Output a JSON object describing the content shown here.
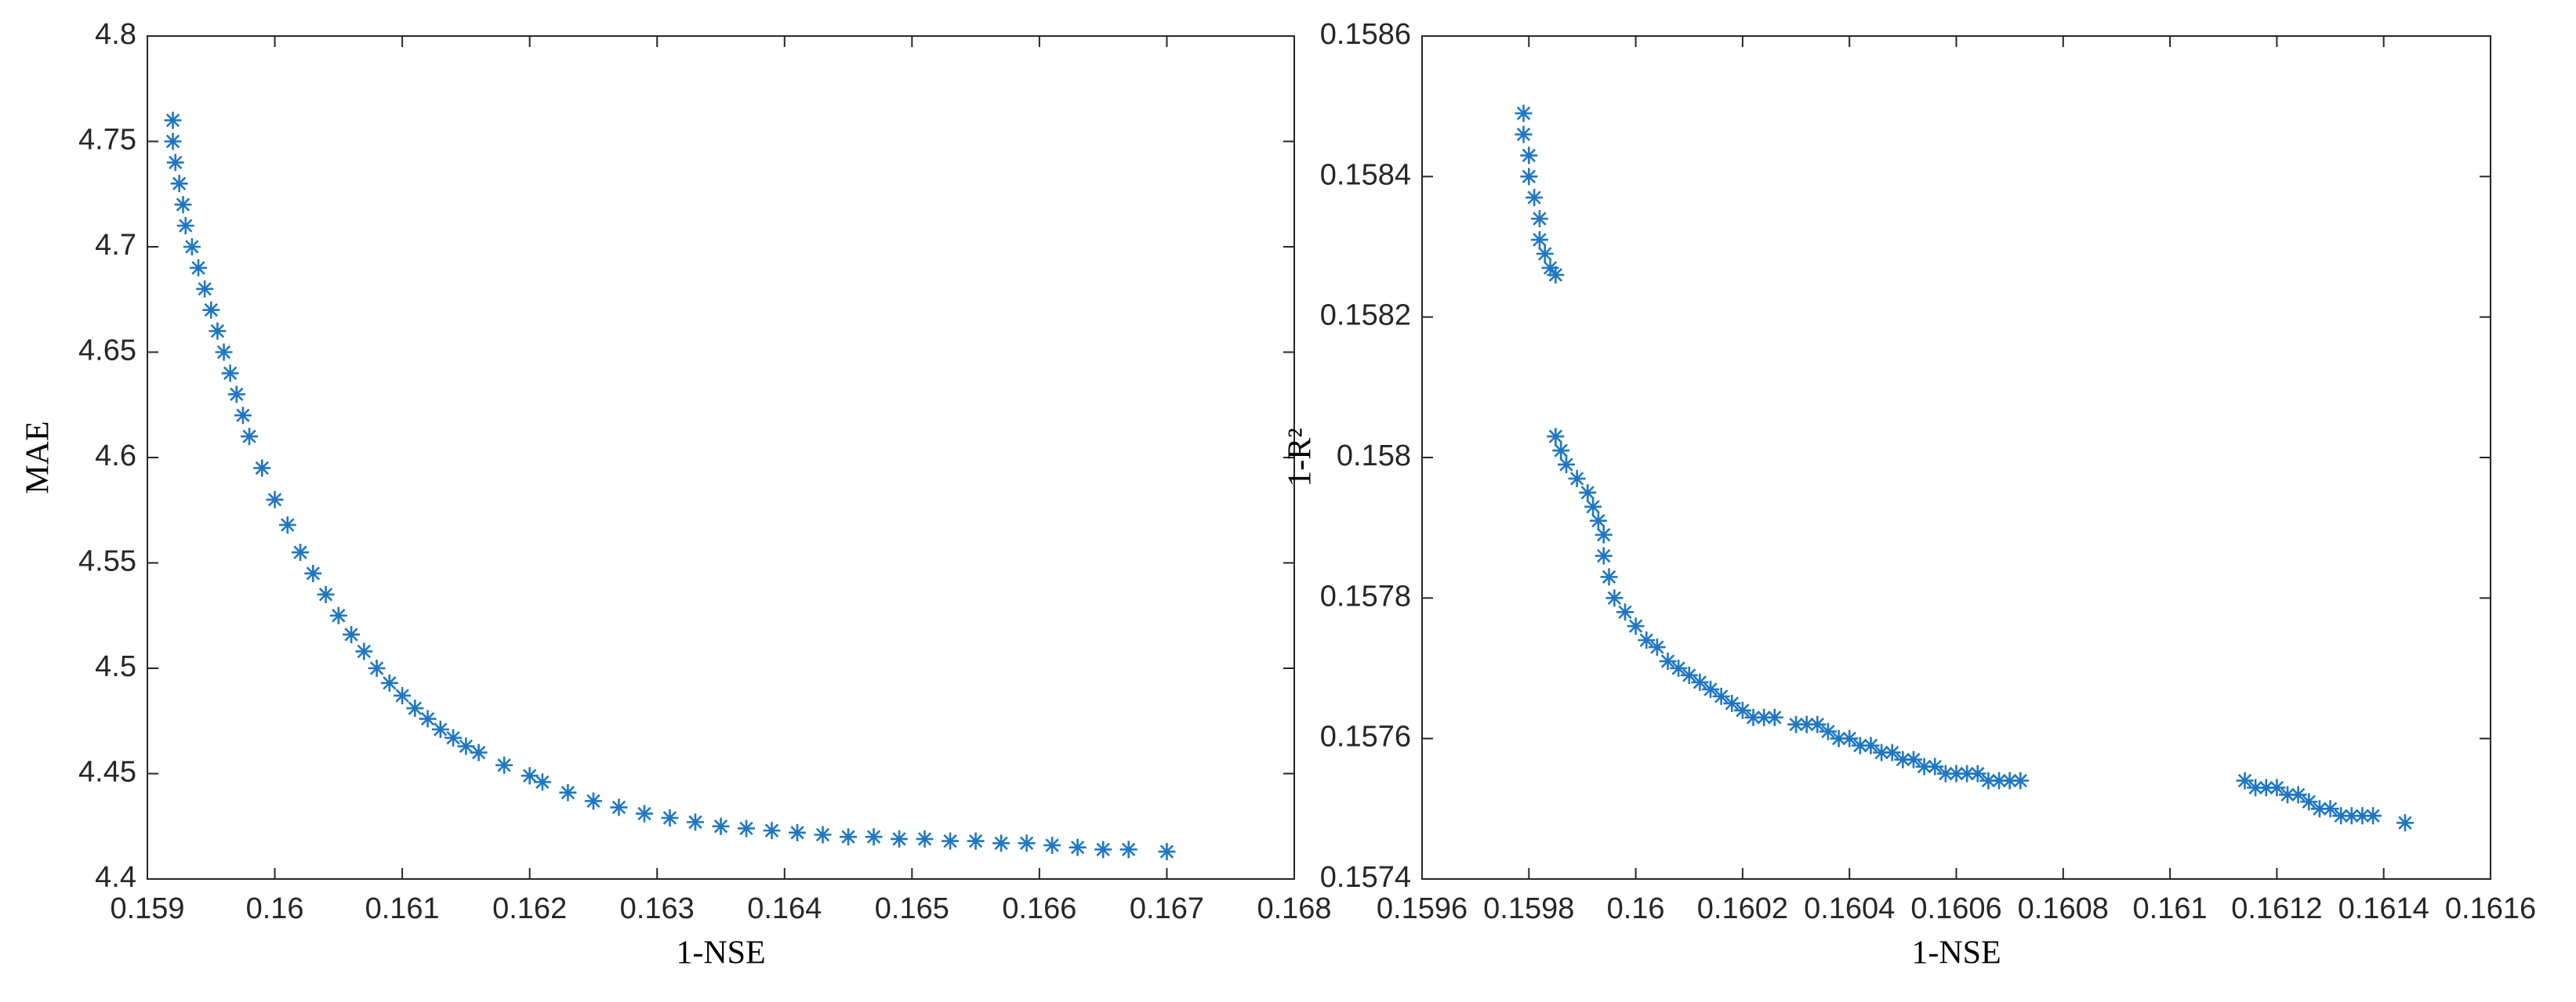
{
  "chart_data": [
    {
      "type": "scatter",
      "xlabel": "1-NSE",
      "ylabel": "MAE",
      "color": "#1f77c4",
      "xlim": [
        0.159,
        0.168
      ],
      "xticks": [
        0.159,
        0.16,
        0.161,
        0.162,
        0.163,
        0.164,
        0.165,
        0.166,
        0.167,
        0.168
      ],
      "ylim": [
        4.4,
        4.8
      ],
      "yticks": [
        4.4,
        4.45,
        4.5,
        4.55,
        4.6,
        4.65,
        4.7,
        4.75,
        4.8
      ],
      "x": [
        0.1592,
        0.1592,
        0.15922,
        0.15925,
        0.15928,
        0.1593,
        0.15935,
        0.1594,
        0.15945,
        0.1595,
        0.15955,
        0.1596,
        0.15965,
        0.1597,
        0.15975,
        0.1598,
        0.1599,
        0.16,
        0.1601,
        0.1602,
        0.1603,
        0.1604,
        0.1605,
        0.1606,
        0.1607,
        0.1608,
        0.1609,
        0.161,
        0.1611,
        0.1612,
        0.1613,
        0.1614,
        0.1615,
        0.1616,
        0.1618,
        0.162,
        0.1621,
        0.1623,
        0.1625,
        0.1627,
        0.1629,
        0.1631,
        0.1633,
        0.1635,
        0.1637,
        0.1639,
        0.1641,
        0.1643,
        0.1645,
        0.1647,
        0.1649,
        0.1651,
        0.1653,
        0.1655,
        0.1657,
        0.1659,
        0.1661,
        0.1663,
        0.1665,
        0.1667,
        0.167
      ],
      "y": [
        4.76,
        4.75,
        4.74,
        4.73,
        4.72,
        4.71,
        4.7,
        4.69,
        4.68,
        4.67,
        4.66,
        4.65,
        4.64,
        4.63,
        4.62,
        4.61,
        4.595,
        4.58,
        4.568,
        4.555,
        4.545,
        4.535,
        4.525,
        4.516,
        4.508,
        4.5,
        4.493,
        4.487,
        4.481,
        4.476,
        4.471,
        4.467,
        4.463,
        4.46,
        4.454,
        4.449,
        4.446,
        4.441,
        4.437,
        4.434,
        4.431,
        4.429,
        4.427,
        4.425,
        4.424,
        4.423,
        4.422,
        4.421,
        4.42,
        4.42,
        4.419,
        4.419,
        4.418,
        4.418,
        4.417,
        4.417,
        4.416,
        4.415,
        4.414,
        4.414,
        4.413
      ]
    },
    {
      "type": "scatter",
      "xlabel": "1-NSE",
      "ylabel": "1-R²",
      "color": "#1f77c4",
      "xlim": [
        0.1596,
        0.1616
      ],
      "xticks": [
        0.1596,
        0.1598,
        0.16,
        0.1602,
        0.1604,
        0.1606,
        0.1608,
        0.161,
        0.1612,
        0.1614,
        0.1616
      ],
      "ylim": [
        0.1574,
        0.1586
      ],
      "yticks": [
        0.1574,
        0.1576,
        0.1578,
        0.158,
        0.1582,
        0.1584,
        0.1586
      ],
      "x": [
        0.15979,
        0.15979,
        0.1598,
        0.1598,
        0.15981,
        0.15982,
        0.15982,
        0.15983,
        0.15984,
        0.15985,
        0.15985,
        0.15986,
        0.15987,
        0.15989,
        0.15991,
        0.15992,
        0.15993,
        0.15994,
        0.15994,
        0.15995,
        0.15996,
        0.15998,
        0.16,
        0.16002,
        0.16004,
        0.16006,
        0.16008,
        0.1601,
        0.16012,
        0.16014,
        0.16016,
        0.16018,
        0.1602,
        0.16022,
        0.16024,
        0.16026,
        0.1603,
        0.16032,
        0.16034,
        0.16036,
        0.16038,
        0.1604,
        0.16042,
        0.16044,
        0.16046,
        0.16048,
        0.1605,
        0.16052,
        0.16054,
        0.16056,
        0.16058,
        0.1606,
        0.16062,
        0.16064,
        0.16066,
        0.16068,
        0.1607,
        0.16072,
        0.16114,
        0.16116,
        0.16118,
        0.1612,
        0.16122,
        0.16124,
        0.16126,
        0.16128,
        0.1613,
        0.16132,
        0.16134,
        0.16136,
        0.16138,
        0.16144
      ],
      "y": [
        0.15849,
        0.15846,
        0.15843,
        0.1584,
        0.15837,
        0.15834,
        0.15831,
        0.15829,
        0.15827,
        0.15826,
        0.15803,
        0.15801,
        0.15799,
        0.15797,
        0.15795,
        0.15793,
        0.15791,
        0.15789,
        0.15786,
        0.15783,
        0.1578,
        0.15778,
        0.15776,
        0.15774,
        0.15773,
        0.15771,
        0.1577,
        0.15769,
        0.15768,
        0.15767,
        0.15766,
        0.15765,
        0.15764,
        0.15763,
        0.15763,
        0.15763,
        0.15762,
        0.15762,
        0.15762,
        0.15761,
        0.1576,
        0.1576,
        0.15759,
        0.15759,
        0.15758,
        0.15758,
        0.15757,
        0.15757,
        0.15756,
        0.15756,
        0.15755,
        0.15755,
        0.15755,
        0.15755,
        0.15754,
        0.15754,
        0.15754,
        0.15754,
        0.15754,
        0.15753,
        0.15753,
        0.15753,
        0.15752,
        0.15752,
        0.15751,
        0.1575,
        0.1575,
        0.15749,
        0.15749,
        0.15749,
        0.15749,
        0.15748
      ]
    }
  ]
}
